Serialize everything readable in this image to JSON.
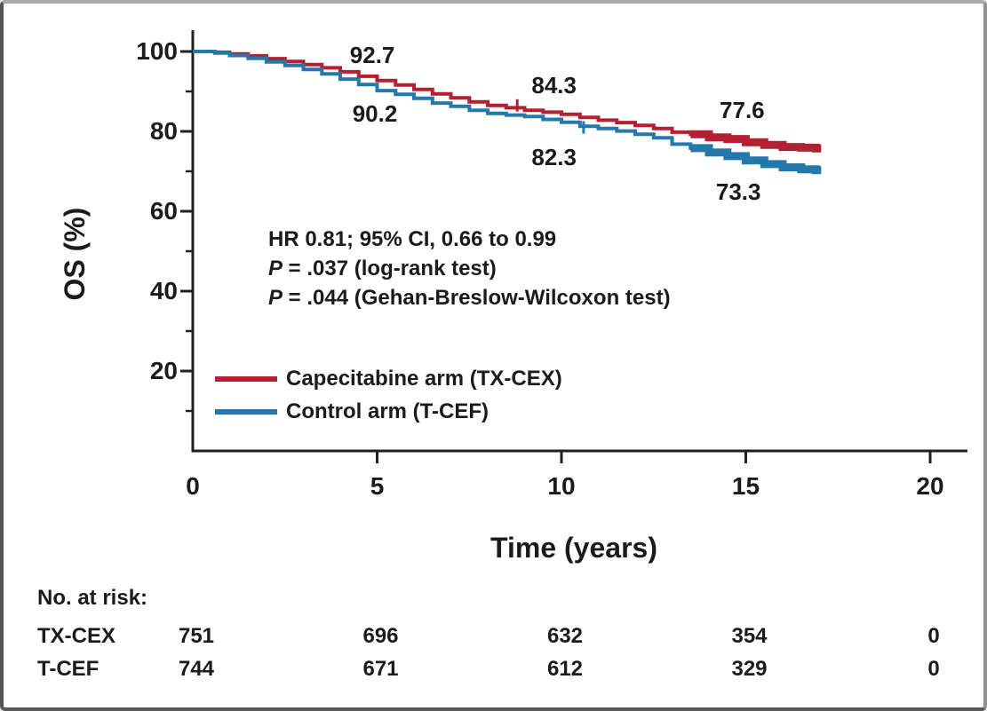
{
  "figure": {
    "y_axis_title": "OS (%)",
    "x_axis_title": "Time (years)",
    "y_tick_labels": [
      "100",
      "80",
      "60",
      "40",
      "20"
    ],
    "x_tick_labels": [
      "0",
      "5",
      "10",
      "15",
      "20"
    ]
  },
  "stats": {
    "line1": "HR 0.81; 95% CI, 0.66 to 0.99",
    "p_italic_1": "P",
    "line2_rest": " = .037 (log-rank test)",
    "p_italic_2": "P",
    "line3_rest": " = .044 (Gehan-Breslow-Wilcoxon test)"
  },
  "legend": {
    "items": [
      {
        "label": "Capecitabine arm (TX-CEX)",
        "series": 0
      },
      {
        "label": "Control arm (T-CEF)",
        "series": 1
      }
    ]
  },
  "risk_table": {
    "title": "No. at risk:",
    "time_points": [
      0,
      5,
      10,
      15,
      20
    ],
    "rows": [
      {
        "label": "TX-CEX",
        "values": [
          "751",
          "696",
          "632",
          "354",
          "0"
        ]
      },
      {
        "label": "T-CEF",
        "values": [
          "744",
          "671",
          "612",
          "329",
          "0"
        ]
      }
    ]
  },
  "chart_data": {
    "type": "line",
    "subtype": "kaplan-meier-step",
    "title": "",
    "xlabel": "Time (years)",
    "ylabel": "OS (%)",
    "xlim": [
      0,
      20.5
    ],
    "ylim": [
      0,
      105
    ],
    "x_ticks": [
      0,
      5,
      10,
      15,
      20
    ],
    "y_ticks": [
      100,
      80,
      60,
      40,
      20
    ],
    "y_minor_ticks": [
      90,
      70,
      50,
      30,
      10
    ],
    "axis_color": "#231f20",
    "legend_position": "lower-left-inside",
    "series": [
      {
        "name": "Capecitabine arm (TX-CEX)",
        "color": "#b22031",
        "thick_from": 13.2,
        "censor_ticks": [
          [
            8.8,
            86.5
          ]
        ],
        "points": [
          [
            0,
            100
          ],
          [
            0.6,
            99.8
          ],
          [
            1,
            99.4
          ],
          [
            1.5,
            98.9
          ],
          [
            2,
            98.2
          ],
          [
            2.5,
            97.5
          ],
          [
            3,
            96.7
          ],
          [
            3.5,
            95.9
          ],
          [
            4,
            94.9
          ],
          [
            4.5,
            93.8
          ],
          [
            5,
            92.7
          ],
          [
            5.5,
            91.6
          ],
          [
            6,
            90.5
          ],
          [
            6.5,
            89.4
          ],
          [
            7,
            88.4
          ],
          [
            7.5,
            87.4
          ],
          [
            8,
            86.5
          ],
          [
            8.5,
            85.9
          ],
          [
            9,
            85.3
          ],
          [
            9.5,
            84.8
          ],
          [
            10,
            84.3
          ],
          [
            10.5,
            83.5
          ],
          [
            11,
            82.8
          ],
          [
            11.5,
            82.2
          ],
          [
            12,
            81.5
          ],
          [
            12.5,
            80.7
          ],
          [
            13,
            79.8
          ],
          [
            13.5,
            79.3
          ],
          [
            14,
            78.5
          ],
          [
            14.5,
            78.1
          ],
          [
            15,
            77.3
          ],
          [
            15.5,
            76.6
          ],
          [
            16,
            76.1
          ],
          [
            16.5,
            75.9
          ],
          [
            16.9,
            75.7
          ]
        ],
        "labeled_rates": {
          "5yr": 92.7,
          "10yr": 84.3,
          "15yr": 77.6
        }
      },
      {
        "name": "Control arm (T-CEF)",
        "color": "#2478ab",
        "thick_from": 13.3,
        "censor_ticks": [
          [
            10.6,
            81.0
          ]
        ],
        "points": [
          [
            0,
            100
          ],
          [
            0.6,
            99.6
          ],
          [
            1,
            99.0
          ],
          [
            1.5,
            98.3
          ],
          [
            2,
            97.4
          ],
          [
            2.5,
            96.5
          ],
          [
            3,
            95.5
          ],
          [
            3.5,
            94.4
          ],
          [
            4,
            93.1
          ],
          [
            4.5,
            91.7
          ],
          [
            5,
            90.2
          ],
          [
            5.5,
            89.3
          ],
          [
            6,
            88.3
          ],
          [
            6.5,
            87.1
          ],
          [
            7,
            86.3
          ],
          [
            7.5,
            85.3
          ],
          [
            8,
            84.5
          ],
          [
            8.5,
            84.1
          ],
          [
            9,
            83.7
          ],
          [
            9.5,
            83.0
          ],
          [
            10,
            82.3
          ],
          [
            10.5,
            81.3
          ],
          [
            11,
            80.7
          ],
          [
            11.5,
            80.1
          ],
          [
            12,
            79.3
          ],
          [
            12.5,
            78.4
          ],
          [
            13,
            76.8
          ],
          [
            13.5,
            75.8
          ],
          [
            14,
            74.7
          ],
          [
            14.5,
            73.8
          ],
          [
            15,
            72.7
          ],
          [
            15.5,
            71.8
          ],
          [
            16,
            71.0
          ],
          [
            16.5,
            70.5
          ],
          [
            16.9,
            70.3
          ]
        ],
        "labeled_rates": {
          "5yr": 90.2,
          "10yr": 82.3,
          "15yr": 73.3
        }
      }
    ],
    "annotations": [
      {
        "text": "92.7",
        "x_year": 4.87,
        "y_pct": 99.1
      },
      {
        "text": "84.3",
        "x_year": 9.8,
        "y_pct": 91.6
      },
      {
        "text": "77.6",
        "x_year": 14.9,
        "y_pct": 85.3
      },
      {
        "text": "90.2",
        "x_year": 4.94,
        "y_pct": 84.4
      },
      {
        "text": "82.3",
        "x_year": 9.8,
        "y_pct": 73.6
      },
      {
        "text": "73.3",
        "x_year": 14.8,
        "y_pct": 64.9
      }
    ]
  }
}
